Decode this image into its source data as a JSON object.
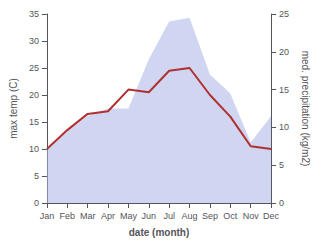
{
  "chart_data": {
    "type": "line",
    "xlabel": "date (month)",
    "ylabel": "max temp (C)",
    "y2label": "med. precipitation (kg/m2)",
    "categories": [
      "Jan",
      "Feb",
      "Mar",
      "Apr",
      "May",
      "Jun",
      "Jul",
      "Aug",
      "Sep",
      "Oct",
      "Nov",
      "Dec"
    ],
    "series": [
      {
        "type": "area",
        "axis": "y2",
        "color": "#aab4e8",
        "values": [
          7.0,
          9.5,
          11.5,
          12.5,
          12.5,
          19.0,
          24.0,
          24.5,
          17.0,
          14.5,
          8.0,
          11.5
        ]
      },
      {
        "type": "line",
        "color": "#b03030",
        "values": [
          10.0,
          13.5,
          16.5,
          17.0,
          21.0,
          20.5,
          24.5,
          25.0,
          20.0,
          16.0,
          10.5,
          10.0
        ]
      }
    ],
    "ylim": [
      0,
      35
    ],
    "yticks": [
      0,
      5,
      10,
      15,
      20,
      25,
      30,
      35
    ],
    "y2lim": [
      0,
      25
    ],
    "y2ticks": [
      0,
      5,
      10,
      15,
      20,
      25
    ],
    "grid": false
  }
}
